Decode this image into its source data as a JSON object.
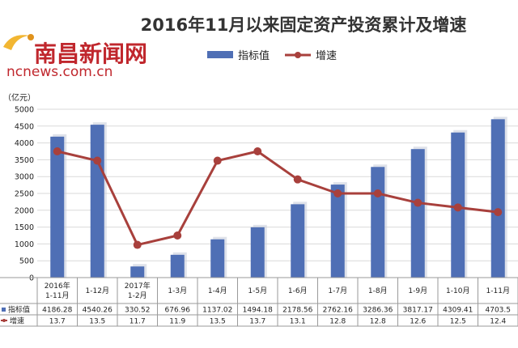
{
  "title": "2016年11月以来固定资产投资累计及增速",
  "logo": {
    "text": "南昌新闻网",
    "url": "ncnews.com.cn"
  },
  "legend": {
    "bar_label": "指标值",
    "line_label": "增速"
  },
  "colors": {
    "bar": "#4f6fb5",
    "line": "#a8403c",
    "title": "#333333",
    "logo": "#c0272d"
  },
  "chart_data": {
    "type": "bar",
    "ylabel": "（亿元）",
    "ylim": [
      0,
      5000
    ],
    "yticks": [
      "0",
      "500",
      "1000",
      "1500",
      "2000",
      "2500",
      "3000",
      "3500",
      "4000",
      "4500",
      "5000"
    ],
    "categories": [
      [
        "2016年",
        "1-11月"
      ],
      [
        "1-12月"
      ],
      [
        "2017年",
        "1-2月"
      ],
      [
        "1-3月"
      ],
      [
        "1-4月"
      ],
      [
        "1-5月"
      ],
      [
        "1-6月"
      ],
      [
        "1-7月"
      ],
      [
        "1-8月"
      ],
      [
        "1-9月"
      ],
      [
        "1-10月"
      ],
      [
        "1-11月"
      ]
    ],
    "series": [
      {
        "name": "指标值",
        "type": "bar",
        "values": [
          4186.28,
          4540.26,
          330.52,
          676.96,
          1137.02,
          1494.18,
          2178.56,
          2762.16,
          3286.36,
          3817.17,
          4309.41,
          4703.5
        ],
        "labels": [
          "4186.28",
          "4540.26",
          "330.52",
          "676.96",
          "1137.02",
          "1494.18",
          "2178.56",
          "2762.16",
          "3286.36",
          "3817.17",
          "4309.41",
          "4703.5"
        ]
      },
      {
        "name": "增速",
        "type": "line",
        "values": [
          13.7,
          13.5,
          11.7,
          11.9,
          13.5,
          13.7,
          13.1,
          12.8,
          12.8,
          12.6,
          12.5,
          12.4
        ],
        "labels": [
          "13.7",
          "13.5",
          "11.7",
          "11.9",
          "13.5",
          "13.7",
          "13.1",
          "12.8",
          "12.8",
          "12.6",
          "12.5",
          "12.4"
        ]
      }
    ],
    "table": {
      "bar_row_label": "指标值",
      "line_row_label": "增速"
    }
  }
}
